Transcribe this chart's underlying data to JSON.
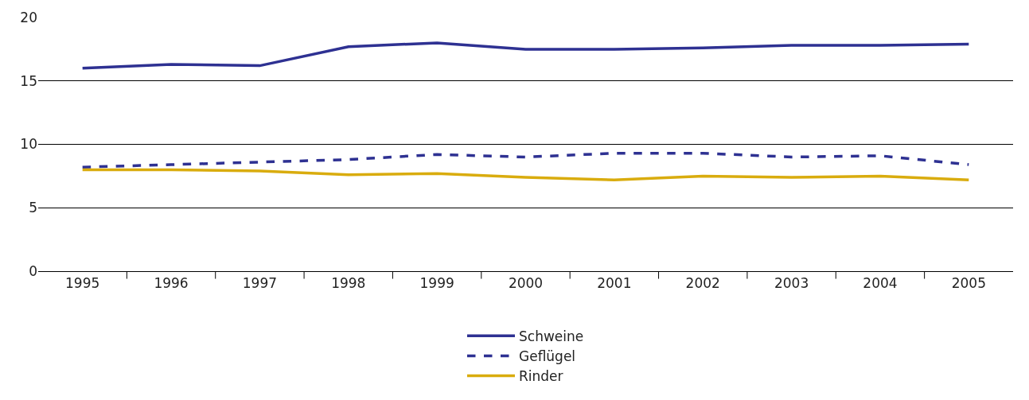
{
  "chart_data": {
    "type": "line",
    "categories": [
      "1995",
      "1996",
      "1997",
      "1998",
      "1999",
      "2000",
      "2001",
      "2002",
      "2003",
      "2004",
      "2005"
    ],
    "series": [
      {
        "name": "Schweine",
        "color": "#2e3192",
        "line_style": "solid",
        "values": [
          16.0,
          16.3,
          16.2,
          17.7,
          18.0,
          17.5,
          17.5,
          17.6,
          17.8,
          17.8,
          17.9
        ]
      },
      {
        "name": "Geflügel",
        "color": "#2e3192",
        "line_style": "dashed",
        "values": [
          8.2,
          8.4,
          8.6,
          8.8,
          9.2,
          9.0,
          9.3,
          9.3,
          9.0,
          9.1,
          8.4
        ]
      },
      {
        "name": "Rinder",
        "color": "#d9ac0e",
        "line_style": "solid",
        "values": [
          8.0,
          8.0,
          7.9,
          7.6,
          7.7,
          7.4,
          7.2,
          7.5,
          7.4,
          7.5,
          7.2
        ]
      }
    ],
    "ylim": [
      0,
      20
    ],
    "yticks": [
      0,
      5,
      10,
      15,
      20
    ],
    "grid": "y",
    "legend": "bottom",
    "marker": "none"
  }
}
